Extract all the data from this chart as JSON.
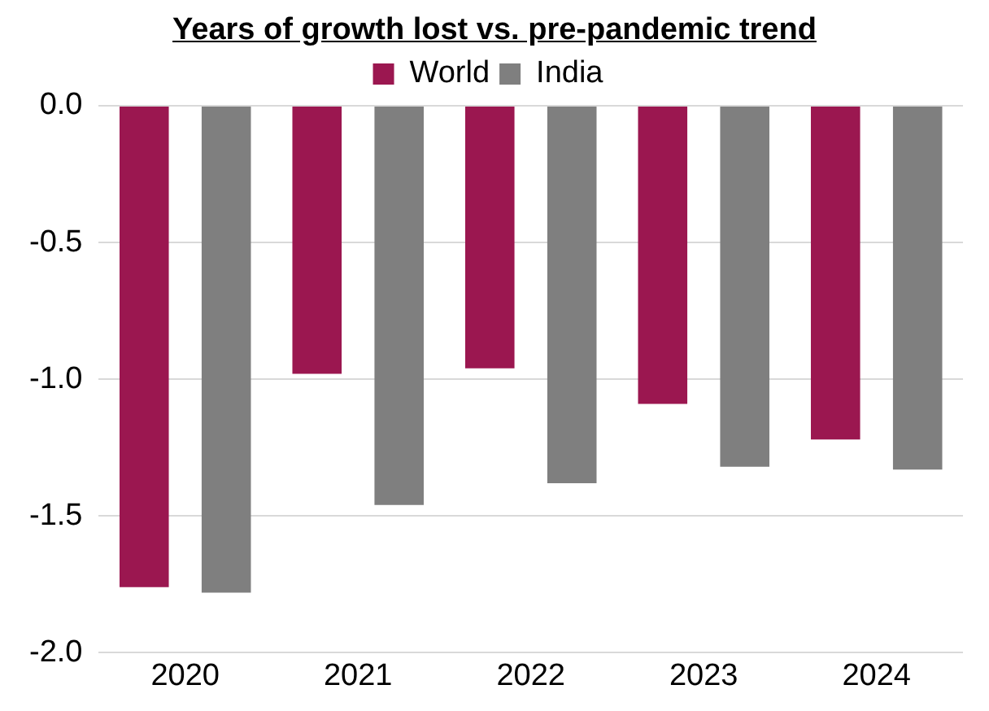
{
  "chart_data": {
    "type": "bar",
    "title": "Years of growth lost vs. pre-pandemic trend",
    "categories": [
      "2020",
      "2021",
      "2022",
      "2023",
      "2024"
    ],
    "series": [
      {
        "name": "World",
        "color": "#9b1750",
        "values": [
          -1.76,
          -0.98,
          -0.96,
          -1.09,
          -1.22
        ]
      },
      {
        "name": "India",
        "color": "#7f7f7f",
        "values": [
          -1.78,
          -1.46,
          -1.38,
          -1.32,
          -1.33
        ]
      }
    ],
    "ylim": [
      -2.0,
      0.0
    ],
    "yticks": [
      {
        "value": 0,
        "label": "0.0"
      },
      -0.5,
      {
        "value": -1,
        "label": "-1.0"
      },
      -1.5,
      {
        "value": -2,
        "label": "-2.0"
      }
    ],
    "grid": "y",
    "legend": "top"
  }
}
